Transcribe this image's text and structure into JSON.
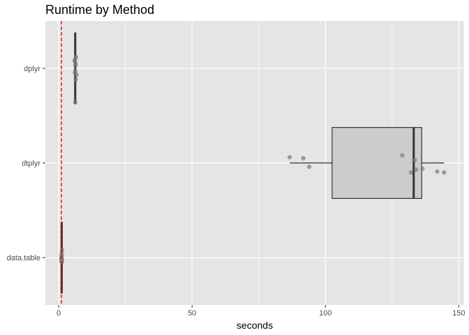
{
  "chart_data": {
    "type": "boxplot",
    "orientation": "horizontal",
    "title": "Runtime by Method",
    "xlabel": "seconds",
    "ylabel": "",
    "xlim": [
      -5,
      152
    ],
    "x_ticks": [
      0,
      50,
      100,
      150
    ],
    "grid": true,
    "reference_line": {
      "x": 1,
      "style": "dashed",
      "color": "#ff0000"
    },
    "colors": {
      "panel": "#e5e5e5",
      "grid": "#ffffff",
      "box_fill": "#cccccc",
      "box_stroke": "#333333",
      "points": "#7f7f7f"
    },
    "categories": [
      "dplyr",
      "dtplyr",
      "data.table"
    ],
    "boxes": [
      {
        "name": "dplyr",
        "min": 6.0,
        "q1": 6.1,
        "median": 6.2,
        "q3": 6.3,
        "max": 6.5,
        "points": [
          6.2,
          6.4,
          6.0,
          6.7,
          6.3,
          6.1,
          6.5,
          6.2,
          6.3,
          6.1
        ],
        "jitter": [
          0.36,
          0.12,
          -0.08,
          0.07,
          -0.03,
          0.05,
          -0.12,
          0.03,
          -0.05,
          -0.09
        ]
      },
      {
        "name": "dtplyr",
        "min": 86.6,
        "q1": 102.5,
        "median": 133.1,
        "q3": 136.1,
        "max": 144.5,
        "points": [
          86.6,
          91.7,
          93.9,
          128.8,
          132.1,
          133.5,
          134.0,
          136.4,
          141.9,
          144.5
        ],
        "jitter": [
          -0.06,
          -0.05,
          0.04,
          -0.08,
          0.1,
          -0.03,
          0.07,
          0.06,
          0.09,
          0.1
        ]
      },
      {
        "name": "data.table",
        "min": 1.0,
        "q1": 1.05,
        "median": 1.1,
        "q3": 1.15,
        "max": 1.2,
        "points": [
          1.1,
          1.2,
          1.0,
          1.1,
          1.2,
          1.0,
          1.1,
          1.3,
          1.1,
          1.0
        ],
        "jitter": [
          0.04,
          0.02,
          0.01,
          -0.02,
          0.05,
          0.0,
          -0.04,
          -0.08,
          0.03,
          0.02
        ]
      }
    ]
  }
}
